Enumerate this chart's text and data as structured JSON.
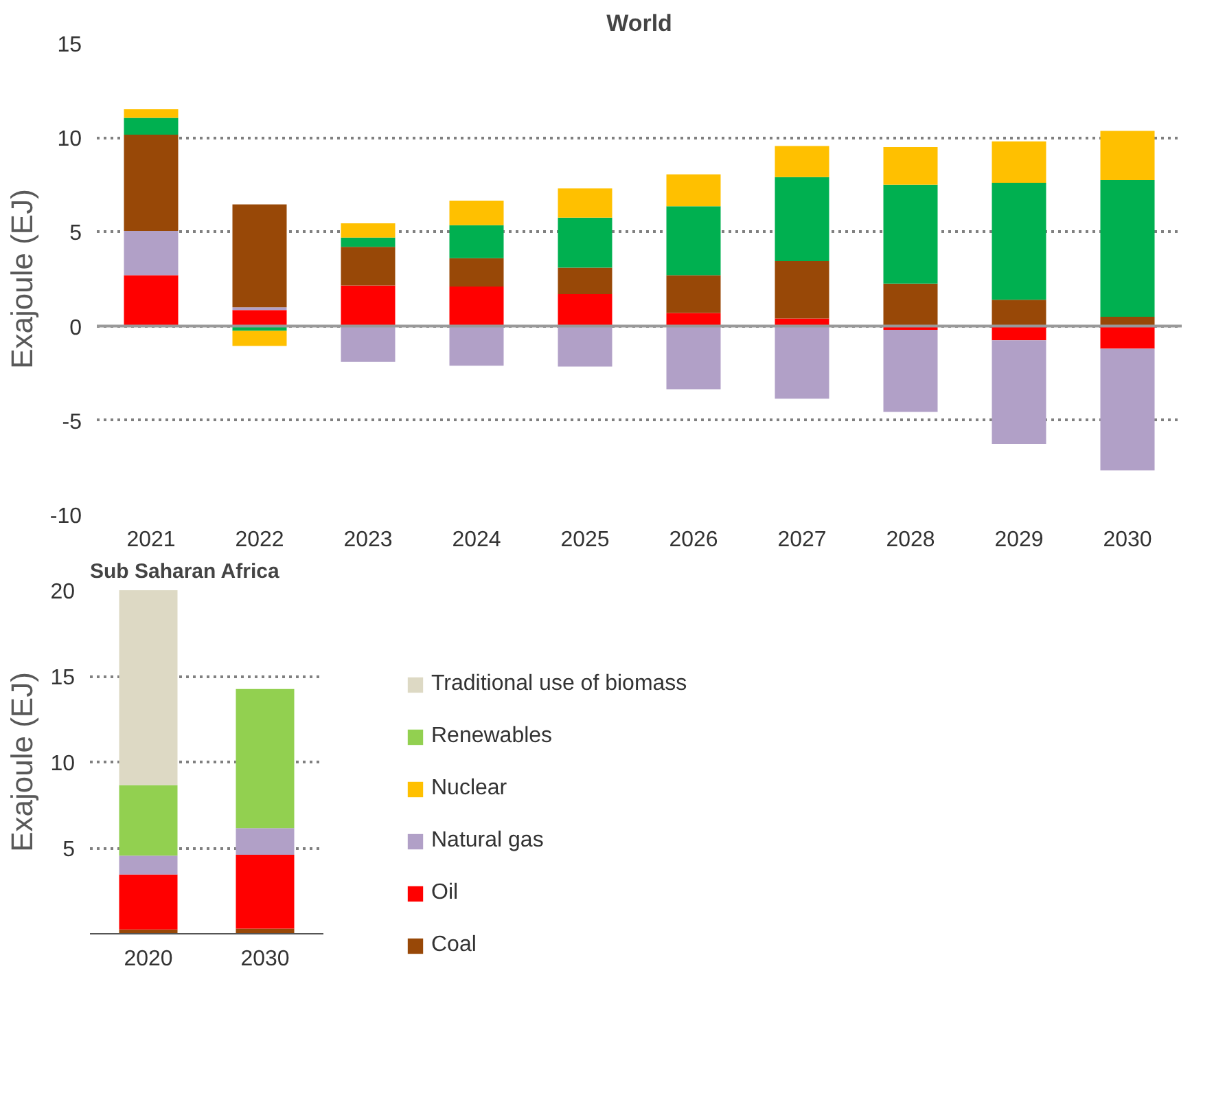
{
  "chart_data": [
    {
      "type": "bar",
      "title": "World",
      "ylabel": "Exajoule (EJ)",
      "stacked": true,
      "grid": "y",
      "categories": [
        "2021",
        "2022",
        "2023",
        "2024",
        "2025",
        "2026",
        "2027",
        "2028",
        "2029",
        "2030"
      ],
      "ylim": [
        -10,
        15
      ],
      "yticks": [
        -10,
        -5,
        0,
        5,
        10,
        15
      ],
      "series": [
        {
          "color": "#ff0000",
          "values": [
            2.7,
            0.85,
            2.15,
            2.1,
            1.7,
            0.7,
            0.4,
            -0.2,
            -0.75,
            -1.2
          ]
        },
        {
          "color": "#b1a0c7",
          "values": [
            2.35,
            0.15,
            -1.9,
            -2.1,
            -2.15,
            -3.35,
            -3.85,
            -4.35,
            -5.5,
            -6.45
          ]
        },
        {
          "color": "#984807",
          "values": [
            5.1,
            5.45,
            2.05,
            1.5,
            1.4,
            2.0,
            3.05,
            2.25,
            1.4,
            0.5
          ]
        },
        {
          "color": "#00b050",
          "values": [
            0.9,
            -0.25,
            0.5,
            1.75,
            2.65,
            3.65,
            4.45,
            5.25,
            6.2,
            7.25
          ]
        },
        {
          "color": "#ffc000",
          "values": [
            0.45,
            -0.8,
            0.75,
            1.3,
            1.55,
            1.7,
            1.65,
            2.0,
            2.2,
            2.6
          ]
        }
      ]
    },
    {
      "type": "bar",
      "title": "Sub Saharan Africa",
      "ylabel": "Exajoule (EJ)",
      "stacked": true,
      "grid": "y",
      "legend": "right",
      "categories": [
        "2020",
        "2030"
      ],
      "ylim": [
        0,
        20
      ],
      "yticks": [
        5,
        10,
        15,
        20
      ],
      "series": [
        {
          "name": "Coal",
          "color": "#984807",
          "values": [
            0.25,
            0.3
          ]
        },
        {
          "name": "Oil",
          "color": "#ff0000",
          "values": [
            3.2,
            4.3
          ]
        },
        {
          "name": "Natural gas",
          "color": "#b1a0c7",
          "values": [
            1.1,
            1.55
          ]
        },
        {
          "name": "Nuclear",
          "color": "#ffc000",
          "values": [
            0,
            0
          ]
        },
        {
          "name": "Renewables",
          "color": "#92d050",
          "values": [
            4.1,
            8.1
          ]
        },
        {
          "name": "Traditional use of biomass",
          "color": "#ddd9c4",
          "values": [
            11.35,
            0
          ]
        }
      ]
    }
  ]
}
